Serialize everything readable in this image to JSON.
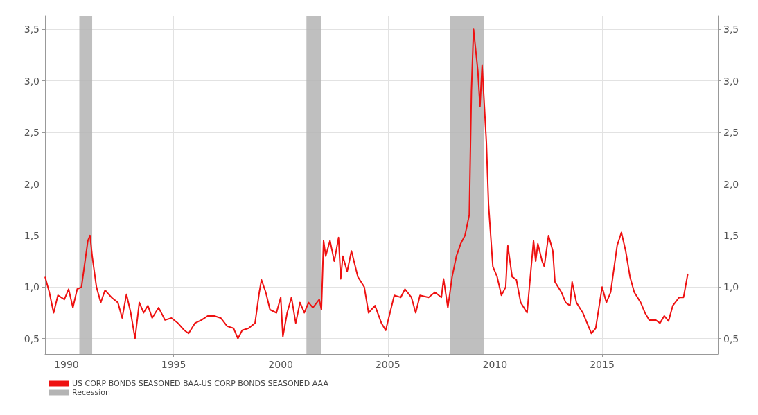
{
  "chart_data": {
    "type": "line",
    "x": [
      1989.0,
      1989.2,
      1989.4,
      1989.6,
      1989.9,
      1990.1,
      1990.3,
      1990.5,
      1990.7,
      1990.9,
      1991.0,
      1991.1,
      1991.2,
      1991.4,
      1991.6,
      1991.8,
      1992.1,
      1992.4,
      1992.6,
      1992.8,
      1993.0,
      1993.2,
      1993.4,
      1993.6,
      1993.8,
      1994.0,
      1994.3,
      1994.6,
      1994.9,
      1995.2,
      1995.5,
      1995.7,
      1996.0,
      1996.3,
      1996.6,
      1996.9,
      1997.2,
      1997.5,
      1997.8,
      1998.0,
      1998.2,
      1998.5,
      1998.8,
      1999.0,
      1999.1,
      1999.3,
      1999.5,
      1999.8,
      2000.0,
      2000.1,
      2000.3,
      2000.5,
      2000.7,
      2000.9,
      2001.1,
      2001.3,
      2001.5,
      2001.8,
      2001.9,
      2002.0,
      2002.1,
      2002.3,
      2002.5,
      2002.7,
      2002.8,
      2002.9,
      2003.1,
      2003.3,
      2003.6,
      2003.9,
      2004.1,
      2004.4,
      2004.7,
      2004.9,
      2005.1,
      2005.3,
      2005.6,
      2005.8,
      2006.1,
      2006.3,
      2006.5,
      2006.9,
      2007.2,
      2007.5,
      2007.6,
      2007.8,
      2008.0,
      2008.2,
      2008.4,
      2008.6,
      2008.8,
      2008.9,
      2009.0,
      2009.2,
      2009.3,
      2009.4,
      2009.6,
      2009.7,
      2009.9,
      2010.1,
      2010.3,
      2010.5,
      2010.6,
      2010.8,
      2011.0,
      2011.2,
      2011.5,
      2011.8,
      2011.9,
      2012.0,
      2012.2,
      2012.3,
      2012.5,
      2012.7,
      2012.8,
      2013.1,
      2013.3,
      2013.5,
      2013.6,
      2013.8,
      2014.1,
      2014.3,
      2014.5,
      2014.7,
      2015.0,
      2015.2,
      2015.4,
      2015.7,
      2015.9,
      2016.1,
      2016.3,
      2016.5,
      2016.8,
      2017.0,
      2017.2,
      2017.5,
      2017.7,
      2017.9,
      2018.1,
      2018.3,
      2018.6,
      2018.8,
      2019.0
    ],
    "series": [
      {
        "name": "US CORP BONDS SEASONED BAA-US CORP BONDS SEASONED AAA",
        "color": "#ee1111",
        "values": [
          1.1,
          0.95,
          0.75,
          0.92,
          0.88,
          0.98,
          0.8,
          0.98,
          1.0,
          1.3,
          1.45,
          1.5,
          1.3,
          1.0,
          0.85,
          0.97,
          0.9,
          0.85,
          0.7,
          0.93,
          0.75,
          0.5,
          0.85,
          0.75,
          0.82,
          0.7,
          0.8,
          0.68,
          0.7,
          0.65,
          0.58,
          0.55,
          0.65,
          0.68,
          0.72,
          0.72,
          0.7,
          0.62,
          0.6,
          0.5,
          0.58,
          0.6,
          0.65,
          0.95,
          1.07,
          0.95,
          0.78,
          0.75,
          0.9,
          0.52,
          0.75,
          0.9,
          0.65,
          0.85,
          0.75,
          0.85,
          0.8,
          0.88,
          0.78,
          1.45,
          1.3,
          1.45,
          1.25,
          1.48,
          1.08,
          1.3,
          1.15,
          1.35,
          1.1,
          1.0,
          0.75,
          0.82,
          0.65,
          0.58,
          0.75,
          0.92,
          0.9,
          0.98,
          0.9,
          0.75,
          0.92,
          0.9,
          0.95,
          0.9,
          1.08,
          0.8,
          1.1,
          1.3,
          1.42,
          1.5,
          1.7,
          2.9,
          3.5,
          3.1,
          2.75,
          3.15,
          2.4,
          1.8,
          1.2,
          1.1,
          0.92,
          1.0,
          1.4,
          1.1,
          1.07,
          0.85,
          0.75,
          1.45,
          1.25,
          1.42,
          1.25,
          1.2,
          1.5,
          1.35,
          1.05,
          0.95,
          0.85,
          0.82,
          1.05,
          0.85,
          0.75,
          0.65,
          0.55,
          0.6,
          1.0,
          0.85,
          0.95,
          1.4,
          1.53,
          1.35,
          1.1,
          0.95,
          0.85,
          0.75,
          0.68,
          0.68,
          0.65,
          0.72,
          0.67,
          0.82,
          0.9,
          0.9,
          1.13
        ]
      }
    ],
    "xlim": [
      1989.0,
      2020.4
    ],
    "xticks": [
      1990,
      1995,
      2000,
      2005,
      2010,
      2015
    ],
    "ylim": [
      0.35,
      3.63
    ],
    "yticks": [
      {
        "value": 0.5,
        "label": "0,5"
      },
      {
        "value": 1.0,
        "label": "1,0"
      },
      {
        "value": 1.5,
        "label": "1,5"
      },
      {
        "value": 2.0,
        "label": "2,0"
      },
      {
        "value": 2.5,
        "label": "2,5"
      },
      {
        "value": 3.0,
        "label": "3,0"
      },
      {
        "value": 3.5,
        "label": "3,5"
      }
    ],
    "y2lim": [
      0.35,
      3.63
    ],
    "y2ticks": [
      {
        "value": 0.5,
        "label": "0,5"
      },
      {
        "value": 1.0,
        "label": "1,0"
      },
      {
        "value": 1.5,
        "label": "1,5"
      },
      {
        "value": 2.0,
        "label": "2,0"
      },
      {
        "value": 2.5,
        "label": "2,5"
      },
      {
        "value": 3.0,
        "label": "3,0"
      },
      {
        "value": 3.5,
        "label": "3,5"
      }
    ],
    "bands": [
      {
        "axis": "x",
        "from": 1990.6,
        "to": 1991.2,
        "label": "Recession",
        "color": "#b4b4b4"
      },
      {
        "axis": "x",
        "from": 2001.2,
        "to": 2001.9,
        "color": "#b4b4b4"
      },
      {
        "axis": "x",
        "from": 2007.9,
        "to": 2009.5,
        "color": "#b4b4b4"
      }
    ],
    "grid": true,
    "legend": "bottom left",
    "marker": "none",
    "line_style": "solid"
  }
}
